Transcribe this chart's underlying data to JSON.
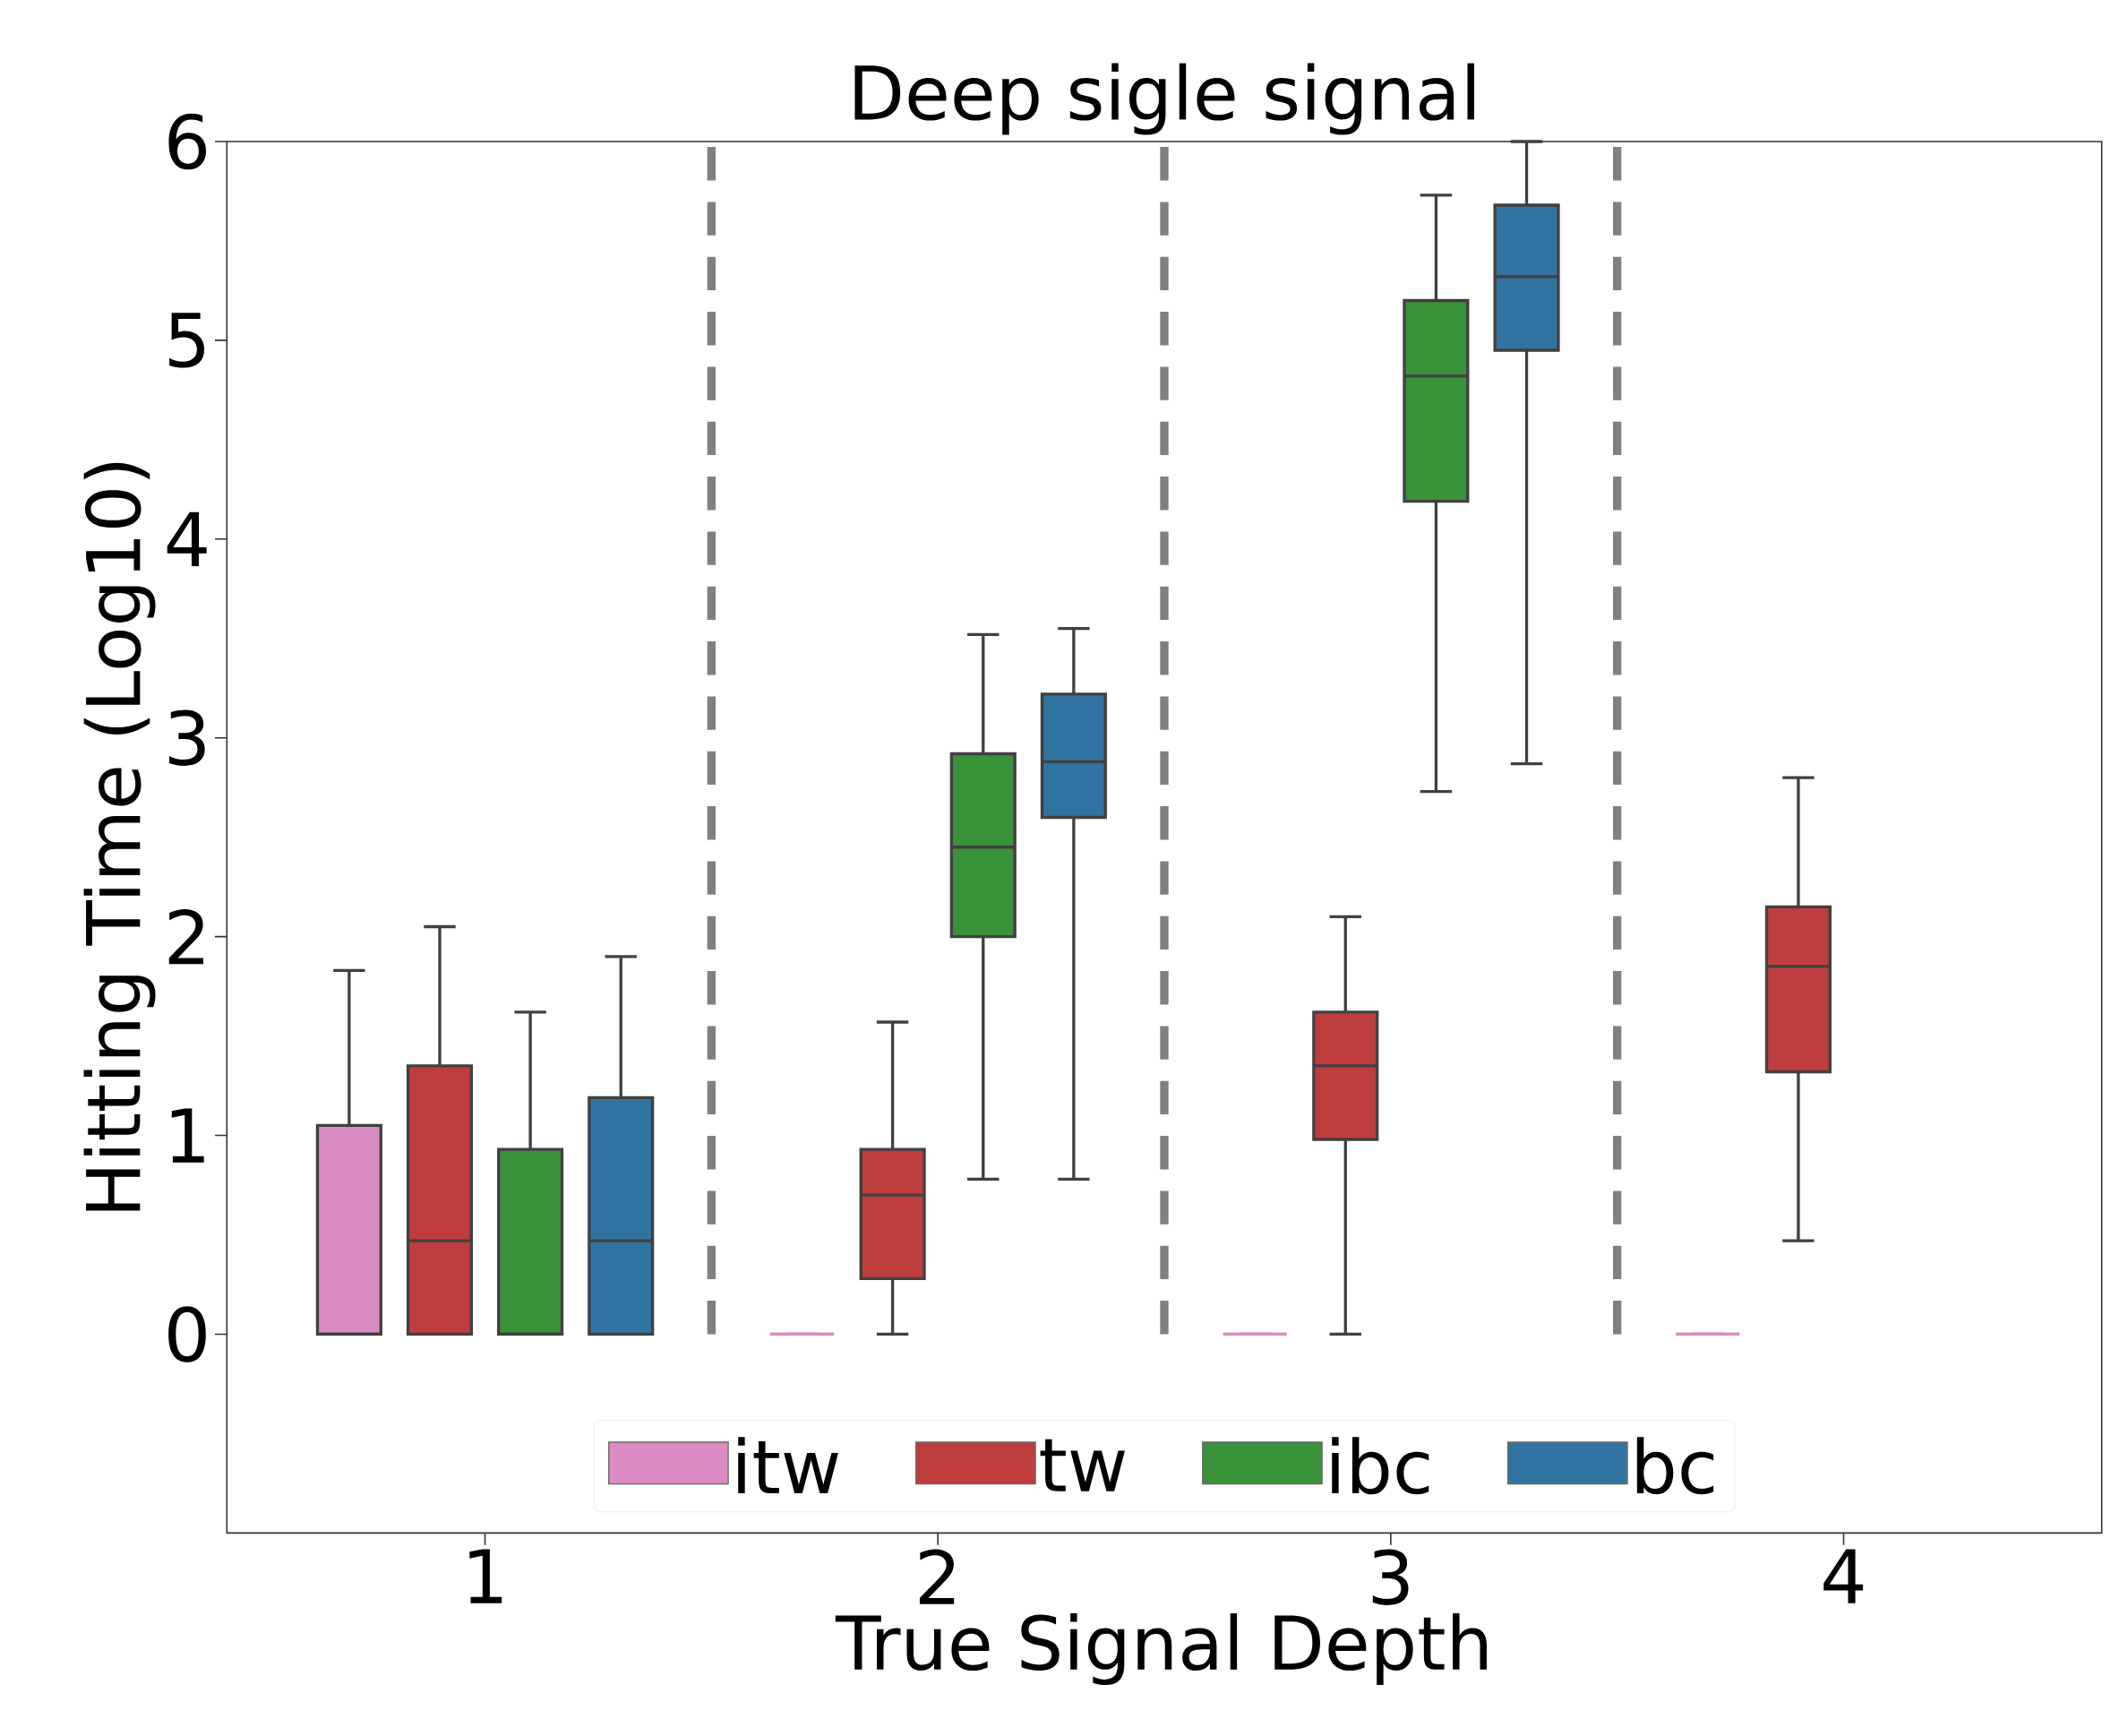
{
  "chart_data": {
    "type": "box",
    "title": "Deep sigle signal",
    "xlabel": "True Signal Depth",
    "ylabel": "Hitting Time (Log10)",
    "x": [
      1,
      2,
      3,
      4
    ],
    "xlim": [
      0.43,
      4.57
    ],
    "xticks": [
      1,
      2,
      3,
      4
    ],
    "ylim": [
      -1,
      6
    ],
    "yticks": [
      0,
      1,
      2,
      3,
      4,
      5,
      6
    ],
    "series": [
      {
        "name": "itw",
        "color": "#da8bc3",
        "boxes": [
          {
            "low": 0,
            "q1": 0,
            "median": 0,
            "q3": 1.05,
            "high": 1.83
          },
          {
            "low": 0,
            "q1": 0,
            "median": 0,
            "q3": 0,
            "high": 0
          },
          {
            "low": 0,
            "q1": 0,
            "median": 0,
            "q3": 0,
            "high": 0
          },
          {
            "low": 0,
            "q1": 0,
            "median": 0,
            "q3": 0,
            "high": 0
          }
        ]
      },
      {
        "name": "tw",
        "color": "#c03d3e",
        "boxes": [
          {
            "low": 0,
            "q1": 0,
            "median": 0.47,
            "q3": 1.35,
            "high": 2.05
          },
          {
            "low": 0,
            "q1": 0.28,
            "median": 0.7,
            "q3": 0.93,
            "high": 1.57
          },
          {
            "low": 0,
            "q1": 0.98,
            "median": 1.35,
            "q3": 1.62,
            "high": 2.1
          },
          {
            "low": 0.47,
            "q1": 1.32,
            "median": 1.85,
            "q3": 2.15,
            "high": 2.8
          }
        ]
      },
      {
        "name": "ibc",
        "color": "#3a923a",
        "boxes": [
          {
            "low": 0,
            "q1": 0,
            "median": 0,
            "q3": 0.93,
            "high": 1.62
          },
          {
            "low": 0.78,
            "q1": 2.0,
            "median": 2.45,
            "q3": 2.92,
            "high": 3.52
          },
          {
            "low": 2.73,
            "q1": 4.19,
            "median": 4.82,
            "q3": 5.2,
            "high": 5.73
          },
          null
        ]
      },
      {
        "name": "bc",
        "color": "#3274a1",
        "boxes": [
          {
            "low": 0,
            "q1": 0,
            "median": 0.47,
            "q3": 1.19,
            "high": 1.9
          },
          {
            "low": 0.78,
            "q1": 2.6,
            "median": 2.88,
            "q3": 3.22,
            "high": 3.55
          },
          {
            "low": 2.87,
            "q1": 4.95,
            "median": 5.32,
            "q3": 5.68,
            "high": 6.0
          },
          null
        ]
      }
    ],
    "ref_lines": [
      {
        "axis": "x",
        "value": 1.5,
        "color": "#808080",
        "line_style": "dashed"
      },
      {
        "axis": "x",
        "value": 2.5,
        "color": "#808080",
        "line_style": "dashed"
      },
      {
        "axis": "x",
        "value": 3.5,
        "color": "#808080",
        "line_style": "dashed"
      }
    ],
    "legend": "bottom"
  }
}
